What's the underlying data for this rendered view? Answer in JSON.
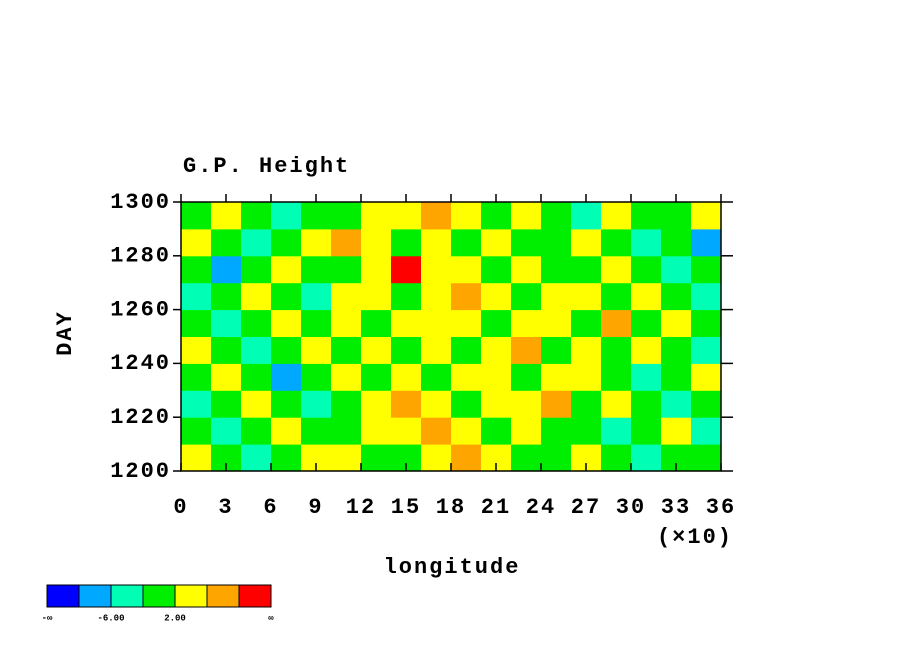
{
  "chart_data": {
    "type": "contour",
    "title": "G.P. Height",
    "xlabel": "longitude",
    "ylabel": "DAY",
    "x_multiplier": "(×10)",
    "xlim": [
      0,
      36
    ],
    "xticks": [
      0,
      3,
      6,
      9,
      12,
      15,
      18,
      21,
      24,
      27,
      30,
      33,
      36
    ],
    "ylim": [
      1200,
      1300
    ],
    "yticks": [
      1200,
      1220,
      1240,
      1260,
      1280,
      1300
    ],
    "x": [
      1,
      3,
      5,
      7,
      9,
      11,
      13,
      15,
      17,
      19,
      21,
      23,
      25,
      27,
      29,
      31,
      33,
      35
    ],
    "y": [
      1205,
      1215,
      1225,
      1235,
      1245,
      1255,
      1265,
      1275,
      1285,
      1295
    ],
    "z": [
      [
        4,
        0,
        -4,
        0,
        4,
        4,
        0,
        0,
        4,
        8,
        4,
        0,
        0,
        4,
        0,
        -4,
        0,
        0
      ],
      [
        0,
        -4,
        0,
        4,
        0,
        0,
        4,
        4,
        8,
        4,
        0,
        4,
        0,
        0,
        -4,
        0,
        4,
        -4
      ],
      [
        -4,
        0,
        4,
        0,
        -4,
        0,
        4,
        8,
        4,
        0,
        4,
        4,
        8,
        0,
        4,
        0,
        -4,
        0
      ],
      [
        0,
        4,
        0,
        -8,
        0,
        4,
        0,
        4,
        0,
        4,
        4,
        0,
        4,
        4,
        0,
        -4,
        0,
        4
      ],
      [
        4,
        0,
        -4,
        0,
        4,
        0,
        4,
        0,
        4,
        0,
        4,
        8,
        0,
        4,
        0,
        4,
        0,
        -4
      ],
      [
        0,
        -4,
        0,
        4,
        0,
        4,
        0,
        4,
        4,
        4,
        0,
        4,
        4,
        0,
        8,
        0,
        4,
        0
      ],
      [
        -4,
        0,
        4,
        0,
        -4,
        4,
        4,
        0,
        4,
        8,
        4,
        0,
        4,
        4,
        0,
        4,
        0,
        -4
      ],
      [
        0,
        -8,
        0,
        4,
        0,
        0,
        4,
        12,
        4,
        4,
        0,
        4,
        0,
        0,
        4,
        0,
        -4,
        0
      ],
      [
        4,
        0,
        -4,
        0,
        4,
        8,
        4,
        0,
        4,
        0,
        4,
        0,
        0,
        4,
        0,
        -4,
        0,
        -8
      ],
      [
        0,
        4,
        0,
        -4,
        0,
        0,
        4,
        4,
        8,
        4,
        0,
        4,
        0,
        -4,
        4,
        0,
        0,
        4
      ]
    ],
    "levels": [
      -10,
      -6,
      -2,
      2,
      6,
      10
    ],
    "colors": [
      "#0000ff",
      "#00a8ff",
      "#00ffb4",
      "#00ee00",
      "#ffff00",
      "#ffa500",
      "#ff0000"
    ],
    "level_labels": [
      {
        "value": -6,
        "label": "-6.00"
      },
      {
        "value": 2,
        "label": "2.00"
      }
    ],
    "end_labels": [
      "-∞",
      "∞"
    ]
  }
}
